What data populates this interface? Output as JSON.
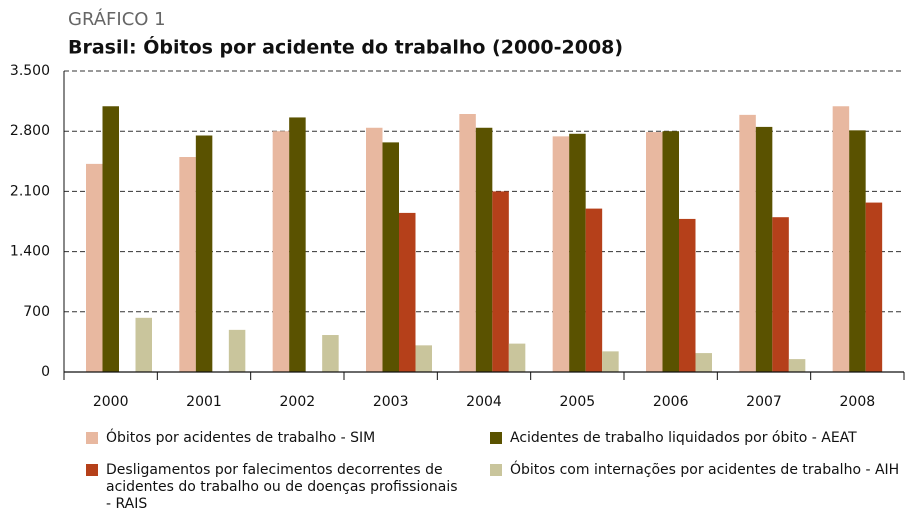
{
  "chart_data": {
    "type": "bar",
    "figure_label": "GRÁFICO 1",
    "title": "Brasil: Óbitos por acidente do trabalho (2000-2008)",
    "categories": [
      "2000",
      "2001",
      "2002",
      "2003",
      "2004",
      "2005",
      "2006",
      "2007",
      "2008"
    ],
    "series": [
      {
        "name": "Óbitos por acidentes de trabalho - SIM",
        "color": "#e8b8a0",
        "values": [
          2420,
          2500,
          2800,
          2840,
          3000,
          2740,
          2790,
          2990,
          3090
        ]
      },
      {
        "name": "Acidentes de trabalho liquidados por óbito - AEAT",
        "color": "#5a5200",
        "values": [
          3090,
          2750,
          2960,
          2670,
          2840,
          2770,
          2800,
          2850,
          2810
        ]
      },
      {
        "name": "Desligamentos por falecimentos decorrentes de acidentes do trabalho ou de doenças profissionais - RAIS",
        "color": "#b5401a",
        "values": [
          null,
          null,
          null,
          1850,
          2100,
          1900,
          1780,
          1800,
          1970
        ]
      },
      {
        "name": "Óbitos com internações por acidentes de trabalho - AIH",
        "color": "#c9c59c",
        "values": [
          630,
          490,
          430,
          310,
          330,
          240,
          220,
          150,
          null
        ]
      }
    ],
    "ylim": [
      0,
      3500
    ],
    "yticks": [
      0,
      700,
      {
        "value": 1400,
        "label": "1.400"
      },
      {
        "value": 2100,
        "label": "2.100"
      },
      {
        "value": 2800,
        "label": "2.800"
      },
      {
        "value": 3500,
        "label": "3.500"
      }
    ],
    "grid": true
  }
}
